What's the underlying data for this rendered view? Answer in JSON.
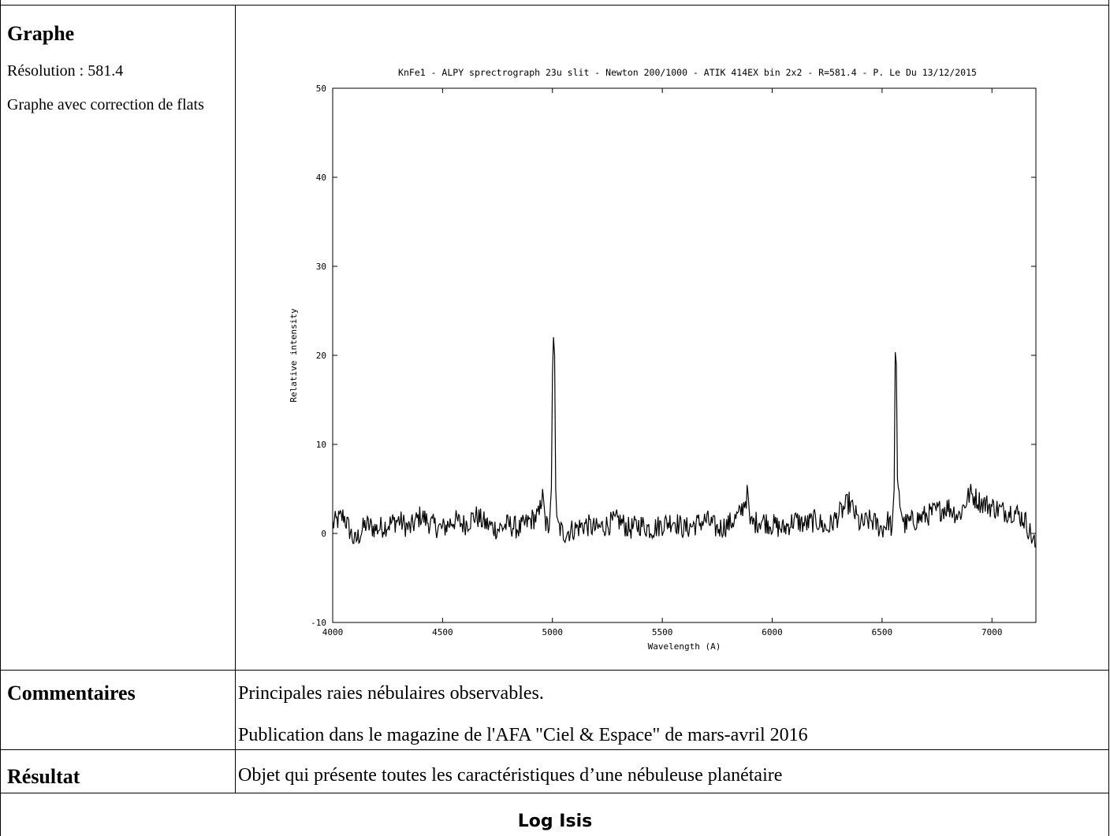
{
  "graph_section": {
    "heading": "Graphe",
    "resolution": "Résolution : 581.4",
    "note": "Graphe avec correction de flats"
  },
  "chart_data": {
    "type": "line",
    "title": "KnFe1 - ALPY sprectrograph 23u slit - Newton 200/1000 - ATIK 414EX bin 2x2 - R=581.4 - P. Le Du 13/12/2015",
    "xlabel": "Wavelength (A)",
    "ylabel": "Relative intensity",
    "xlim": [
      4000,
      7200
    ],
    "ylim": [
      -10,
      50
    ],
    "xticks": [
      4000,
      4500,
      5000,
      5500,
      6000,
      6500,
      7000
    ],
    "yticks": [
      -10,
      0,
      10,
      20,
      30,
      40,
      50
    ],
    "grid": false,
    "series": [
      {
        "x": [
          4000,
          4050,
          4100,
          4150,
          4200,
          4250,
          4300,
          4350,
          4400,
          4450,
          4500,
          4550,
          4600,
          4650,
          4700,
          4750,
          4800,
          4850,
          4900,
          4940,
          4955,
          4970,
          4985,
          4995,
          5000,
          5005,
          5010,
          5015,
          5020,
          5035,
          5050,
          5100,
          5150,
          5200,
          5250,
          5300,
          5350,
          5400,
          5450,
          5500,
          5550,
          5600,
          5650,
          5700,
          5750,
          5800,
          5850,
          5890,
          5900,
          5950,
          6000,
          6050,
          6100,
          6150,
          6200,
          6250,
          6300,
          6350,
          6400,
          6450,
          6500,
          6530,
          6545,
          6555,
          6560,
          6565,
          6570,
          6585,
          6600,
          6650,
          6700,
          6750,
          6800,
          6850,
          6900,
          6950,
          7000,
          7050,
          7100,
          7150,
          7200
        ],
        "y": [
          1.0,
          2.0,
          -1.0,
          1.0,
          0.5,
          1.0,
          1.5,
          0.5,
          2.0,
          1.0,
          0.5,
          1.5,
          1.0,
          2.0,
          1.0,
          0.5,
          1.0,
          0.5,
          1.5,
          2.0,
          5.0,
          1.0,
          0.5,
          5.0,
          18.0,
          22.5,
          20.0,
          5.0,
          1.0,
          0.5,
          0.0,
          0.5,
          1.0,
          0.5,
          1.0,
          1.5,
          0.5,
          1.0,
          0.5,
          1.0,
          1.5,
          0.5,
          1.0,
          1.5,
          0.5,
          1.0,
          2.0,
          4.5,
          1.0,
          1.5,
          1.0,
          0.5,
          1.5,
          1.0,
          1.5,
          0.5,
          2.0,
          3.5,
          1.0,
          1.5,
          0.5,
          1.5,
          0.5,
          5.0,
          20.0,
          19.0,
          5.0,
          3.0,
          1.0,
          1.5,
          2.0,
          2.5,
          3.0,
          2.0,
          4.5,
          3.5,
          3.0,
          2.5,
          2.5,
          1.5,
          -1.5
        ]
      }
    ]
  },
  "commentaires": {
    "label": "Commentaires",
    "line1": "Principales raies nébulaires observables.",
    "line2": "Publication dans le magazine de l'AFA \"Ciel & Espace\" de mars-avril 2016"
  },
  "resultat": {
    "label": "Résultat",
    "text": "Objet qui présente toutes les caractéristiques d’une nébuleuse planétaire"
  },
  "footer": {
    "title": "Log Isis"
  }
}
